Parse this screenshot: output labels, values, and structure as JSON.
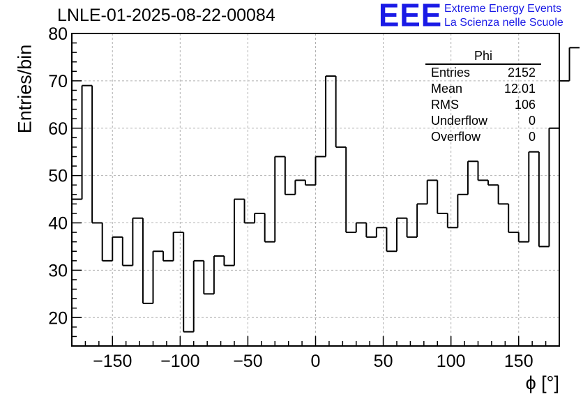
{
  "header": {
    "title": "LNLE-01-2025-08-22-00084",
    "logo_text": "EEE",
    "logo_line1": "Extreme Energy Events",
    "logo_line2": "La Scienza nelle Scuole"
  },
  "stats": {
    "title": "Phi",
    "rows": [
      {
        "label": "Entries",
        "value": "2152"
      },
      {
        "label": "Mean",
        "value": "12.01"
      },
      {
        "label": "RMS",
        "value": "106"
      },
      {
        "label": "Underflow",
        "value": "0"
      },
      {
        "label": "Overflow",
        "value": "0"
      }
    ]
  },
  "chart_data": {
    "type": "bar",
    "style": "step-histogram",
    "xlabel": "ϕ [°]",
    "ylabel": "Entries/bin",
    "xlim": [
      -180,
      180
    ],
    "ylim": [
      14,
      80
    ],
    "bin_width": 7.5,
    "x_ticks": [
      -150,
      -100,
      -50,
      0,
      50,
      100,
      150
    ],
    "y_ticks": [
      20,
      30,
      40,
      50,
      60,
      70,
      80
    ],
    "grid": true,
    "colors": {
      "line": "#000000",
      "grid": "#b0b0b0",
      "logo": "#1a1ae6"
    },
    "series": [
      {
        "name": "Phi",
        "values": [
          45,
          69,
          40,
          32,
          37,
          31,
          41,
          23,
          34,
          32,
          38,
          17,
          32,
          25,
          33,
          31,
          45,
          40,
          42,
          36,
          54,
          46,
          49,
          48,
          54,
          71,
          56,
          38,
          40,
          37,
          39,
          34,
          41,
          37,
          44,
          49,
          42,
          39,
          46,
          53,
          49,
          48,
          44,
          38,
          36,
          55,
          35,
          60,
          70,
          77
        ]
      }
    ]
  }
}
